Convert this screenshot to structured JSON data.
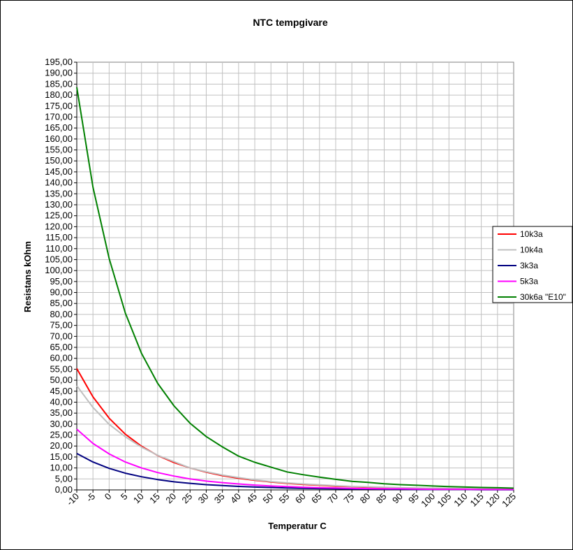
{
  "chart_data": {
    "type": "line",
    "title": "NTC tempgivare",
    "xlabel": "Temperatur C",
    "ylabel": "Resistans kOhm",
    "xlim": [
      -10,
      125
    ],
    "ylim": [
      0,
      195
    ],
    "y_step": 5,
    "x_ticks": [
      "-10",
      "-5",
      "0",
      "5",
      "10",
      "15",
      "20",
      "25",
      "30",
      "35",
      "40",
      "45",
      "50",
      "55",
      "60",
      "65",
      "70",
      "75",
      "80",
      "85",
      "90",
      "95",
      "100",
      "105",
      "110",
      "115",
      "120",
      "125"
    ],
    "y_ticks": [
      "0,00",
      "5,00",
      "10,00",
      "15,00",
      "20,00",
      "25,00",
      "30,00",
      "35,00",
      "40,00",
      "45,00",
      "50,00",
      "55,00",
      "60,00",
      "65,00",
      "70,00",
      "75,00",
      "80,00",
      "85,00",
      "90,00",
      "95,00",
      "100,00",
      "105,00",
      "110,00",
      "115,00",
      "120,00",
      "125,00",
      "130,00",
      "135,00",
      "140,00",
      "145,00",
      "150,00",
      "155,00",
      "160,00",
      "165,00",
      "170,00",
      "175,00",
      "180,00",
      "185,00",
      "190,00",
      "195,00"
    ],
    "grid": true,
    "legend_position": "right",
    "x": [
      -10,
      -5,
      0,
      5,
      10,
      15,
      20,
      25,
      30,
      35,
      40,
      45,
      50,
      55,
      60,
      65,
      70,
      75,
      80,
      85,
      90,
      95,
      100,
      105,
      110,
      115,
      120,
      125
    ],
    "series": [
      {
        "name": "10k3a",
        "color": "#ff0000",
        "values": [
          55.3,
          42.4,
          32.7,
          25.4,
          19.9,
          15.7,
          12.5,
          10.0,
          8.1,
          6.5,
          5.3,
          4.4,
          3.6,
          3.0,
          2.5,
          2.1,
          1.7,
          1.5,
          1.2,
          1.1,
          0.9,
          0.8,
          0.7,
          0.6,
          0.5,
          0.4,
          0.4,
          0.3
        ]
      },
      {
        "name": "10k4a",
        "color": "#c0c0c0",
        "values": [
          47.5,
          37.6,
          29.9,
          24.2,
          19.5,
          15.8,
          12.9,
          10.0,
          8.3,
          6.8,
          5.6,
          4.6,
          3.8,
          3.2,
          2.7,
          2.3,
          1.9,
          1.6,
          1.4,
          1.2,
          1.0,
          0.9,
          0.8,
          0.7,
          0.6,
          0.5,
          0.4,
          0.4
        ]
      },
      {
        "name": "3k3a",
        "color": "#000080",
        "values": [
          16.6,
          12.7,
          9.8,
          7.6,
          6.0,
          4.7,
          3.7,
          3.0,
          2.4,
          2.0,
          1.6,
          1.3,
          1.1,
          0.9,
          0.7,
          0.6,
          0.5,
          0.4,
          0.4,
          0.3,
          0.3,
          0.2,
          0.2,
          0.2,
          0.2,
          0.1,
          0.1,
          0.1
        ]
      },
      {
        "name": "5k3a",
        "color": "#ff00ff",
        "values": [
          27.7,
          21.2,
          16.4,
          12.7,
          10.0,
          7.9,
          6.3,
          5.0,
          4.0,
          3.3,
          2.7,
          2.2,
          1.8,
          1.5,
          1.2,
          1.0,
          0.9,
          0.7,
          0.6,
          0.5,
          0.5,
          0.4,
          0.3,
          0.3,
          0.3,
          0.2,
          0.2,
          0.2
        ]
      },
      {
        "name": "30k6a \"E10\"",
        "color": "#008000",
        "values": [
          183.6,
          138.0,
          105.5,
          80.6,
          62.3,
          48.6,
          38.4,
          30.4,
          24.3,
          19.6,
          15.4,
          12.6,
          10.4,
          8.2,
          6.9,
          5.8,
          4.8,
          3.9,
          3.4,
          2.8,
          2.4,
          2.1,
          1.8,
          1.5,
          1.3,
          1.1,
          1.0,
          0.8
        ]
      }
    ]
  }
}
